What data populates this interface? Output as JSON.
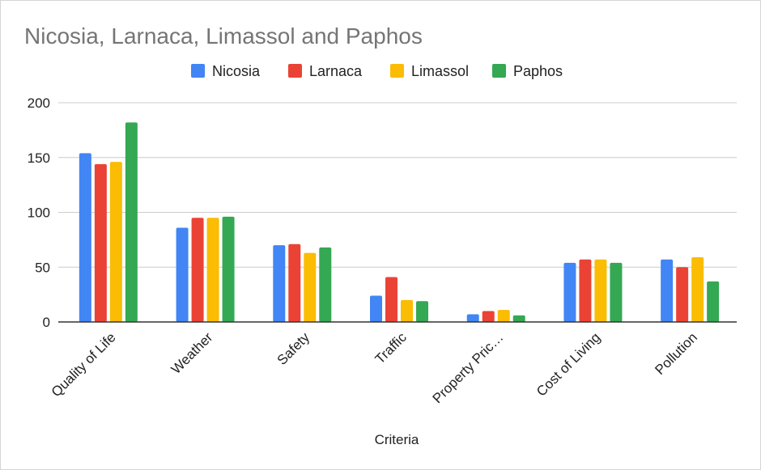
{
  "chart_data": {
    "type": "bar",
    "title": "Nicosia, Larnaca, Limassol and Paphos",
    "xlabel": "Criteria",
    "ylabel": "",
    "ylim": [
      0,
      200
    ],
    "yticks": [
      0,
      50,
      100,
      150,
      200
    ],
    "grid": true,
    "legend_position": "top",
    "categories": [
      "Quality of Life",
      "Weather",
      "Safety",
      "Traffic",
      "Property Pric…",
      "Cost of Living",
      "Pollution"
    ],
    "series": [
      {
        "name": "Nicosia",
        "color": "#4285F4",
        "values": [
          154,
          86,
          70,
          24,
          7,
          54,
          57
        ]
      },
      {
        "name": "Larnaca",
        "color": "#EA4335",
        "values": [
          144,
          95,
          71,
          41,
          10,
          57,
          50
        ]
      },
      {
        "name": "Limassol",
        "color": "#FBBC04",
        "values": [
          146,
          95,
          63,
          20,
          11,
          57,
          59
        ]
      },
      {
        "name": "Paphos",
        "color": "#34A853",
        "values": [
          182,
          96,
          68,
          19,
          6,
          54,
          37
        ]
      }
    ]
  }
}
